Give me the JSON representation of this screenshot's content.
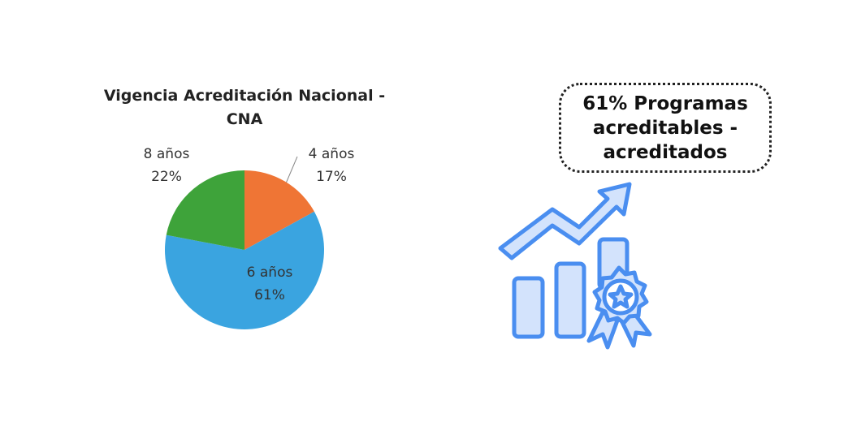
{
  "chart_data": {
    "type": "pie",
    "title": "Vigencia Acreditación Nacional - CNA",
    "categories": [
      "4 años",
      "6 años",
      "8 años"
    ],
    "values": [
      17,
      61,
      22
    ],
    "value_labels": [
      "17%",
      "61%",
      "22%"
    ],
    "colors": [
      "#ef7535",
      "#3aa4e0",
      "#3ea33a"
    ]
  },
  "callout": {
    "text": "61% Programas acreditables - acreditados"
  }
}
